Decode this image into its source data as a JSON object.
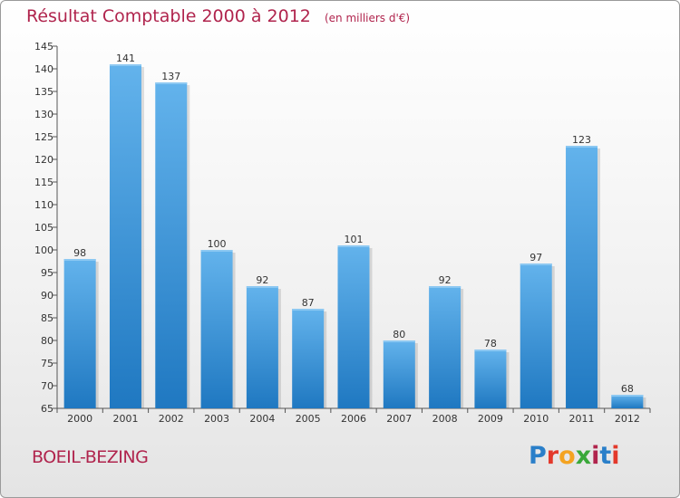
{
  "header": {
    "title": "Résultat Comptable 2000 à 2012",
    "unit": "(en milliers d'€)"
  },
  "footer": {
    "commune": "BOEIL-BEZING",
    "logo": "Proxiti",
    "logo_colors": [
      "#2a7fc9",
      "#e3392b",
      "#f4a321",
      "#3aa83a",
      "#b0244d",
      "#2a7fc9",
      "#e3392b"
    ]
  },
  "colors": {
    "bar_light": "#63b3ec",
    "bar_dark": "#1f78c1",
    "accent": "#b0244d"
  },
  "chart_data": {
    "type": "bar",
    "title": "Résultat Comptable 2000 à 2012",
    "subtitle": "(en milliers d'€)",
    "xlabel": "",
    "ylabel": "",
    "categories": [
      "2000",
      "2001",
      "2002",
      "2003",
      "2004",
      "2005",
      "2006",
      "2007",
      "2008",
      "2009",
      "2010",
      "2011",
      "2012"
    ],
    "values": [
      98,
      141,
      137,
      100,
      92,
      87,
      101,
      80,
      92,
      78,
      97,
      123,
      68
    ],
    "ylim": [
      65,
      145
    ],
    "yticks": [
      65,
      70,
      75,
      80,
      85,
      90,
      95,
      100,
      105,
      110,
      115,
      120,
      125,
      130,
      135,
      140,
      145
    ],
    "grid": false,
    "legend": "none"
  }
}
